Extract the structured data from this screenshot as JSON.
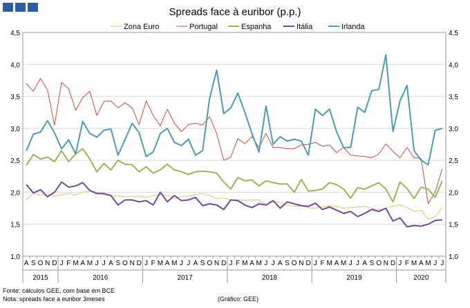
{
  "chart_data": {
    "type": "line",
    "title": "Spreads face à euribor (p.p.)",
    "ylim": [
      1.0,
      4.5
    ],
    "y_ticks": [
      "1,0",
      "1,5",
      "2,0",
      "2,5",
      "3,0",
      "3,5",
      "4,0",
      "4,5"
    ],
    "grid": true,
    "legend_position": "top",
    "x_tick_labels": [
      "A",
      "S",
      "O",
      "N",
      "D",
      "J",
      "F",
      "M",
      "A",
      "M",
      "J",
      "J",
      "A",
      "S",
      "O",
      "N",
      "D",
      "J",
      "F",
      "M",
      "A",
      "M",
      "J",
      "J",
      "A",
      "S",
      "O",
      "N",
      "D",
      "J",
      "F",
      "M",
      "A",
      "M",
      "J",
      "J",
      "A",
      "S",
      "O",
      "N",
      "D",
      "J",
      "F",
      "M",
      "A",
      "M",
      "J",
      "J",
      "A",
      "S",
      "O",
      "N",
      "D",
      "J",
      "F",
      "M",
      "A",
      "M",
      "J",
      "J"
    ],
    "years": [
      {
        "label": "2015",
        "start": 0,
        "end": 4
      },
      {
        "label": "2016",
        "start": 5,
        "end": 16
      },
      {
        "label": "2017",
        "start": 17,
        "end": 28
      },
      {
        "label": "2018",
        "start": 29,
        "end": 40
      },
      {
        "label": "2019",
        "start": 41,
        "end": 52
      },
      {
        "label": "2020",
        "start": 53,
        "end": 59
      }
    ],
    "series": [
      {
        "name": "Zona Euro",
        "color": "#e9c98a",
        "width": 1.2,
        "values": [
          1.88,
          1.98,
          1.96,
          1.97,
          1.94,
          1.96,
          1.98,
          1.96,
          2.0,
          2.02,
          2.0,
          1.96,
          1.95,
          1.94,
          1.93,
          1.93,
          1.94,
          1.92,
          1.95,
          1.96,
          1.95,
          1.9,
          1.93,
          1.94,
          1.96,
          1.98,
          1.95,
          1.9,
          1.91,
          1.88,
          1.88,
          1.87,
          1.88,
          1.88,
          1.8,
          1.86,
          1.84,
          1.8,
          1.78,
          1.79,
          1.76,
          1.75,
          1.77,
          1.79,
          1.78,
          1.75,
          1.76,
          1.77,
          1.78,
          1.75,
          1.73,
          1.75,
          1.78,
          1.8,
          1.76,
          1.7,
          1.72,
          1.58,
          1.62,
          1.76
        ]
      },
      {
        "name": "Portugal",
        "color": "#d9483e",
        "width": 1.0,
        "values": [
          3.7,
          3.58,
          3.78,
          3.6,
          3.05,
          3.72,
          3.62,
          3.28,
          3.48,
          3.58,
          3.2,
          3.42,
          3.43,
          3.32,
          3.4,
          3.32,
          3.06,
          3.43,
          3.2,
          3.04,
          3.3,
          3.08,
          2.95,
          3.06,
          3.08,
          3.05,
          3.18,
          2.92,
          2.5,
          2.55,
          2.84,
          2.76,
          2.87,
          2.7,
          2.92,
          2.7,
          2.7,
          2.68,
          2.68,
          2.74,
          2.75,
          2.78,
          2.72,
          2.74,
          2.62,
          2.7,
          2.58,
          2.57,
          2.56,
          2.54,
          2.6,
          2.76,
          2.64,
          2.54,
          2.7,
          2.54,
          2.53,
          1.82,
          2.0,
          2.37
        ]
      },
      {
        "name": "Espanha",
        "color": "#9bb35a",
        "width": 2.0,
        "values": [
          2.42,
          2.59,
          2.52,
          2.55,
          2.48,
          2.65,
          2.48,
          2.6,
          2.68,
          2.52,
          2.32,
          2.45,
          2.35,
          2.5,
          2.44,
          2.43,
          2.32,
          2.4,
          2.3,
          2.35,
          2.44,
          2.35,
          2.32,
          2.28,
          2.32,
          2.33,
          2.32,
          2.3,
          2.16,
          2.05,
          2.23,
          2.18,
          2.19,
          2.1,
          2.18,
          2.15,
          2.13,
          2.13,
          2.0,
          2.2,
          2.02,
          2.03,
          2.05,
          2.15,
          2.12,
          2.05,
          1.91,
          2.07,
          2.05,
          2.1,
          2.15,
          2.05,
          1.85,
          2.16,
          2.06,
          1.9,
          2.08,
          2.05,
          1.92,
          2.18
        ]
      },
      {
        "name": "Itália",
        "color": "#6e4c96",
        "width": 2.0,
        "values": [
          2.12,
          1.99,
          2.04,
          1.93,
          2.0,
          2.16,
          2.08,
          2.1,
          2.15,
          2.03,
          1.98,
          1.98,
          1.95,
          1.8,
          1.88,
          1.88,
          1.85,
          1.87,
          1.8,
          2.0,
          1.85,
          1.95,
          1.87,
          1.88,
          1.92,
          1.79,
          1.82,
          1.8,
          1.73,
          1.88,
          1.87,
          1.8,
          1.76,
          1.82,
          1.8,
          1.87,
          1.75,
          1.85,
          1.82,
          1.79,
          1.78,
          1.83,
          1.73,
          1.77,
          1.72,
          1.67,
          1.7,
          1.62,
          1.67,
          1.73,
          1.7,
          1.75,
          1.55,
          1.6,
          1.46,
          1.48,
          1.47,
          1.5,
          1.56,
          1.57
        ]
      },
      {
        "name": "Irlanda",
        "color": "#4a9cb3",
        "width": 2.0,
        "values": [
          2.65,
          2.91,
          2.94,
          3.12,
          2.93,
          2.68,
          2.82,
          2.6,
          3.11,
          2.92,
          2.86,
          2.97,
          2.99,
          2.58,
          2.82,
          3.08,
          2.93,
          2.56,
          2.63,
          2.92,
          3.0,
          2.78,
          2.73,
          2.83,
          2.58,
          2.65,
          3.47,
          3.91,
          3.23,
          3.32,
          3.55,
          3.25,
          2.92,
          2.63,
          3.35,
          2.75,
          2.87,
          2.8,
          2.83,
          2.8,
          2.58,
          3.3,
          3.2,
          3.3,
          2.95,
          2.7,
          2.7,
          3.33,
          3.25,
          3.59,
          3.61,
          4.15,
          2.95,
          3.43,
          3.67,
          2.65,
          2.5,
          2.43,
          2.97,
          3.0
        ]
      }
    ]
  },
  "footer": {
    "source": "Fonte: cálculos GEE, com base em BCE",
    "note": "Nota: spreads face a euribor 3meses",
    "credit": "(Gráfico: GEE)"
  },
  "brand": {
    "color": "#2b5ea0"
  }
}
